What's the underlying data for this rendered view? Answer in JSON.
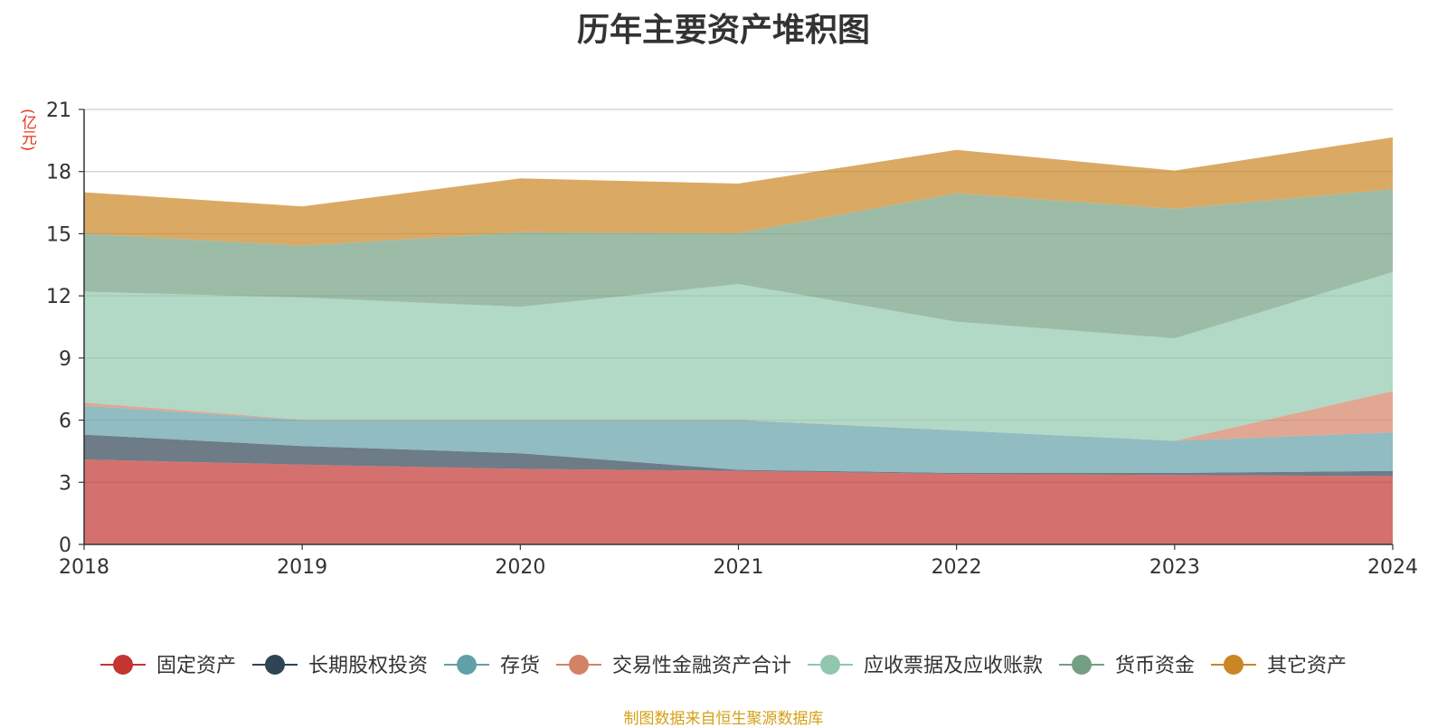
{
  "chart_data": {
    "type": "area",
    "stacked": true,
    "title": "历年主要资产堆积图",
    "unit_label": "(亿元)",
    "source": "制图数据来自恒生聚源数据库",
    "x": [
      "2018",
      "2019",
      "2020",
      "2021",
      "2022",
      "2023",
      "2024"
    ],
    "yticks": [
      "0",
      "3",
      "6",
      "9",
      "12",
      "15",
      "18",
      "21"
    ],
    "ylim": [
      0,
      21
    ],
    "grid": true,
    "legend_position": "bottom",
    "series": [
      {
        "name": "固定资产",
        "color": "#c23531",
        "values": [
          4.1,
          3.85,
          3.65,
          3.55,
          3.4,
          3.35,
          3.3
        ]
      },
      {
        "name": "长期股权投资",
        "color": "#2f4554",
        "values": [
          1.2,
          0.9,
          0.75,
          0.05,
          0.05,
          0.1,
          0.25
        ]
      },
      {
        "name": "存货",
        "color": "#61a0a8",
        "values": [
          1.4,
          1.25,
          1.6,
          2.4,
          2.05,
          1.55,
          1.85
        ]
      },
      {
        "name": "交易性金融资产合计",
        "color": "#d48265",
        "values": [
          0.15,
          0.02,
          0.02,
          0.02,
          0.0,
          0.0,
          2.0
        ]
      },
      {
        "name": "应收票据及应收账款",
        "color": "#91c7ae",
        "values": [
          5.35,
          5.9,
          5.45,
          6.55,
          5.25,
          4.95,
          5.75
        ]
      },
      {
        "name": "货币资金",
        "color": "#749f83",
        "values": [
          2.8,
          2.5,
          3.6,
          2.45,
          6.2,
          6.25,
          4.0
        ]
      },
      {
        "name": "其它资产",
        "color": "#ca8622",
        "values": [
          2.0,
          1.9,
          2.6,
          2.4,
          2.1,
          1.85,
          2.5
        ]
      }
    ]
  }
}
